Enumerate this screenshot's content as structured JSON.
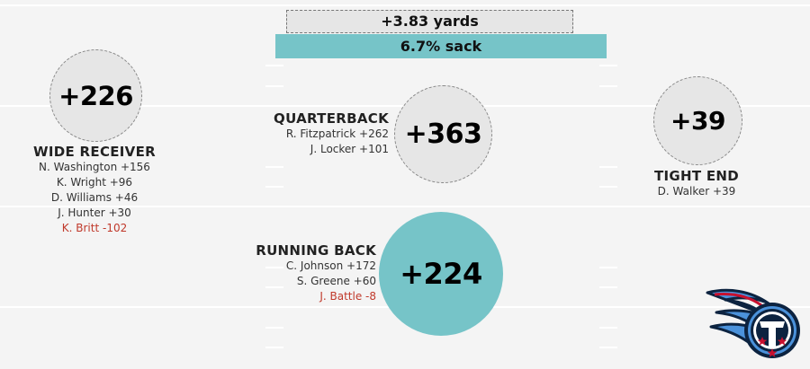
{
  "summary": {
    "yards_label": "+3.83 yards",
    "sack_label": "6.7% sack"
  },
  "positions": {
    "wide_receiver": {
      "title": "WIDE RECEIVER",
      "total": "+226",
      "players": [
        {
          "text": "N. Washington +156",
          "negative": false
        },
        {
          "text": "K. Wright +96",
          "negative": false
        },
        {
          "text": "D. Williams +46",
          "negative": false
        },
        {
          "text": "J. Hunter +30",
          "negative": false
        },
        {
          "text": "K. Britt -102",
          "negative": true
        }
      ]
    },
    "quarterback": {
      "title": "QUARTERBACK",
      "total": "+363",
      "players": [
        {
          "text": "R. Fitzpatrick +262",
          "negative": false
        },
        {
          "text": "J. Locker +101",
          "negative": false
        }
      ]
    },
    "tight_end": {
      "title": "TIGHT END",
      "total": "+39",
      "players": [
        {
          "text": "D. Walker +39",
          "negative": false
        }
      ]
    },
    "running_back": {
      "title": "RUNNING BACK",
      "total": "+224",
      "players": [
        {
          "text": "C. Johnson +172",
          "negative": false
        },
        {
          "text": "S. Greene +60",
          "negative": false
        },
        {
          "text": "J. Battle -8",
          "negative": true
        }
      ]
    }
  },
  "colors": {
    "teal": "#76c4c8",
    "gray_circle": "#e6e6e6",
    "negative_text": "#c0392b",
    "logo_navy": "#0c2340",
    "logo_blue": "#4b92db",
    "logo_red": "#c8102e"
  },
  "logo": {
    "icon": "tennessee-titans-logo-icon"
  }
}
